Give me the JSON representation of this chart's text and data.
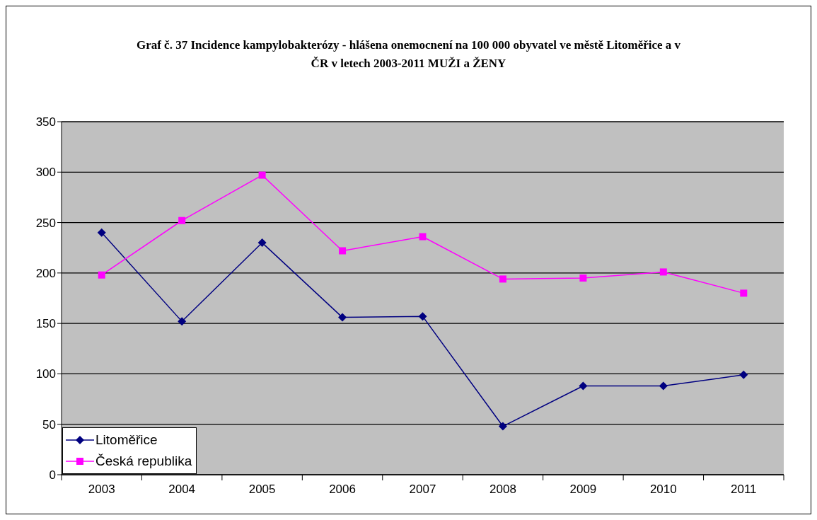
{
  "chart_data": {
    "type": "line",
    "title": "Graf č. 37 Incidence kampylobakterózy - hlášena onemocnení  na 100 000 obyvatel ve městě Litoměřice a v ČR v letech 2003-2011 MUŽI a ŽENY",
    "categories": [
      "2003",
      "2004",
      "2005",
      "2006",
      "2007",
      "2008",
      "2009",
      "2010",
      "2011"
    ],
    "series": [
      {
        "name": "Litoměřice",
        "color": "#000080",
        "marker": "diamond",
        "values": [
          240,
          152,
          230,
          156,
          157,
          48,
          88,
          88,
          99
        ]
      },
      {
        "name": "Česká republika",
        "color": "#ff00ff",
        "marker": "square",
        "values": [
          198,
          252,
          297,
          222,
          236,
          194,
          195,
          201,
          180
        ]
      }
    ],
    "ylim": [
      0,
      350
    ],
    "yticks": [
      0,
      50,
      100,
      150,
      200,
      250,
      300,
      350
    ],
    "grid": "y",
    "legend": "bottom left"
  }
}
